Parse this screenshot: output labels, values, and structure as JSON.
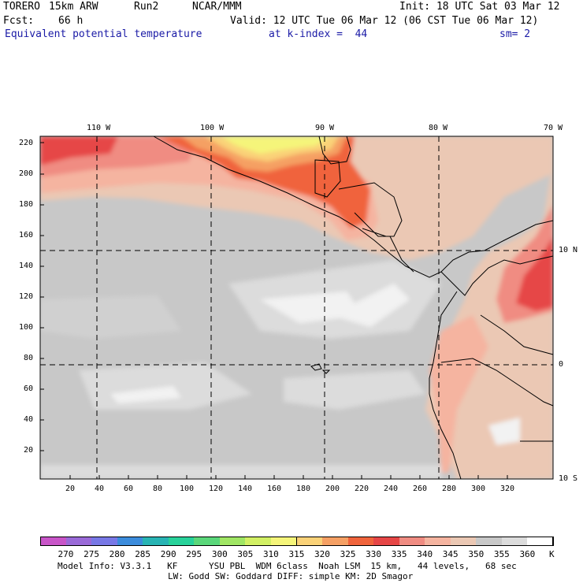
{
  "header": {
    "model": "TORERO",
    "resolution": "15km ARW",
    "run": "Run2",
    "org": "NCAR/MMM",
    "init": "Init: 18 UTC Sat 03 Mar 12",
    "fcst_label": "Fcst:",
    "fcst_value": "66 h",
    "valid": "Valid: 12 UTC Tue 06 Mar 12 (06 CST Tue 06 Mar 12)",
    "field": "Equivalent potential temperature",
    "level": "at k-index =  44",
    "smoothing": "sm= 2"
  },
  "axes": {
    "top_lon_labels": [
      "110 W",
      "100 W",
      "90 W",
      "80 W",
      "70 W"
    ],
    "right_lat_labels": [
      "10 N",
      "0",
      "10 S"
    ],
    "left_grid_labels": [
      "220",
      "200",
      "180",
      "160",
      "140",
      "120",
      "100",
      "80",
      "60",
      "40",
      "20"
    ],
    "bottom_grid_labels": [
      "20",
      "40",
      "60",
      "80",
      "100",
      "120",
      "140",
      "160",
      "180",
      "200",
      "220",
      "240",
      "260",
      "280",
      "300",
      "320"
    ]
  },
  "colorbar": {
    "unit": "K",
    "labels": [
      "270",
      "275",
      "280",
      "285",
      "290",
      "295",
      "300",
      "305",
      "310",
      "315",
      "320",
      "325",
      "330",
      "335",
      "340",
      "345",
      "350",
      "355",
      "360"
    ],
    "colors": [
      "#c855c8",
      "#9a6ad8",
      "#7878e6",
      "#3c8cdc",
      "#28b4b4",
      "#28d29a",
      "#5ad77a",
      "#a0e664",
      "#d2f064",
      "#f5f57a",
      "#fad278",
      "#f5a064",
      "#f0643c",
      "#e64646",
      "#f08c82",
      "#f5b4a0",
      "#ebc8b4",
      "#c8c8c8",
      "#dcdcdc",
      "#ffffff"
    ]
  },
  "footer": {
    "line1": "Model Info: V3.3.1   KF      YSU PBL  WDM 6class  Noah LSM  15 km,   44 levels,   68 sec",
    "line2": "LW: Godd SW: Goddard DIFF: simple KM: 2D Smagor"
  }
}
